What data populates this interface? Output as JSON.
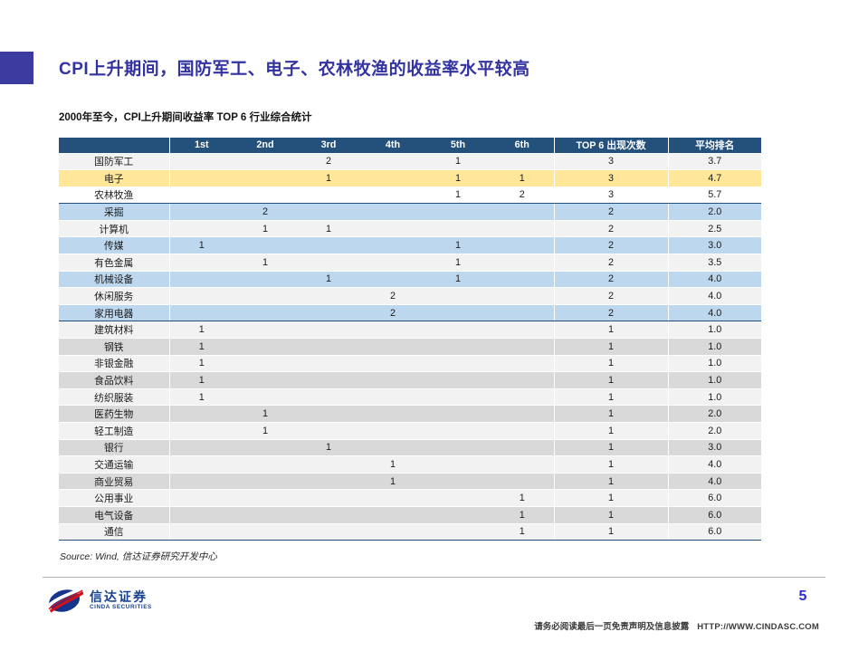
{
  "page": {
    "title": "CPI上升期间，国防军工、电子、农林牧渔的收益率水平较高",
    "subtitle": "2000年至今，CPI上升期间收益率 TOP 6 行业综合统计",
    "source": "Source: Wind, 信达证券研究开发中心",
    "page_number": "5",
    "disclaimer": "请务必阅读最后一页免责声明及信息披露",
    "website": "HTTP://WWW.CINDASC.COM",
    "logo": {
      "name_cn": "信达证券",
      "name_en": "CINDA SECURITIES"
    }
  },
  "colors": {
    "accent": "#3C3CA0",
    "title": "#3333A0",
    "navy": "#24507C",
    "yellow": "#FFE699",
    "blue": "#BDD7EE",
    "gray": "#D9D9D9",
    "light": "#F2F2F2",
    "line": "#B3B3B3",
    "pageblue": "#2B2BD0",
    "logoblue": "#17418F",
    "logored": "#D0121B"
  },
  "chart_data": {
    "type": "table",
    "columns": [
      "",
      "1st",
      "2nd",
      "3rd",
      "4th",
      "5th",
      "6th",
      "TOP 6 出现次数",
      "平均排名"
    ],
    "rows": [
      {
        "label": "国防军工",
        "values": [
          "",
          "",
          "2",
          "",
          "1",
          ""
        ],
        "top6": "3",
        "avg": "3.7",
        "bg": "light",
        "section_end": false
      },
      {
        "label": "电子",
        "values": [
          "",
          "",
          "1",
          "",
          "1",
          "1"
        ],
        "top6": "3",
        "avg": "4.7",
        "bg": "yellow",
        "section_end": false
      },
      {
        "label": "农林牧渔",
        "values": [
          "",
          "",
          "",
          "",
          "1",
          "2"
        ],
        "top6": "3",
        "avg": "5.7",
        "bg": "white",
        "section_end": true
      },
      {
        "label": "采掘",
        "values": [
          "",
          "2",
          "",
          "",
          "",
          ""
        ],
        "top6": "2",
        "avg": "2.0",
        "bg": "blue",
        "section_end": false
      },
      {
        "label": "计算机",
        "values": [
          "",
          "1",
          "1",
          "",
          "",
          ""
        ],
        "top6": "2",
        "avg": "2.5",
        "bg": "light",
        "section_end": false
      },
      {
        "label": "传媒",
        "values": [
          "1",
          "",
          "",
          "",
          "1",
          ""
        ],
        "top6": "2",
        "avg": "3.0",
        "bg": "blue",
        "section_end": false
      },
      {
        "label": "有色金属",
        "values": [
          "",
          "1",
          "",
          "",
          "1",
          ""
        ],
        "top6": "2",
        "avg": "3.5",
        "bg": "light",
        "section_end": false
      },
      {
        "label": "机械设备",
        "values": [
          "",
          "",
          "1",
          "",
          "1",
          ""
        ],
        "top6": "2",
        "avg": "4.0",
        "bg": "blue",
        "section_end": false
      },
      {
        "label": "休闲服务",
        "values": [
          "",
          "",
          "",
          "2",
          "",
          ""
        ],
        "top6": "2",
        "avg": "4.0",
        "bg": "light",
        "section_end": false
      },
      {
        "label": "家用电器",
        "values": [
          "",
          "",
          "",
          "2",
          "",
          ""
        ],
        "top6": "2",
        "avg": "4.0",
        "bg": "blue",
        "section_end": true
      },
      {
        "label": "建筑材料",
        "values": [
          "1",
          "",
          "",
          "",
          "",
          ""
        ],
        "top6": "1",
        "avg": "1.0",
        "bg": "light",
        "section_end": false
      },
      {
        "label": "钢铁",
        "values": [
          "1",
          "",
          "",
          "",
          "",
          ""
        ],
        "top6": "1",
        "avg": "1.0",
        "bg": "gray",
        "section_end": false
      },
      {
        "label": "非银金融",
        "values": [
          "1",
          "",
          "",
          "",
          "",
          ""
        ],
        "top6": "1",
        "avg": "1.0",
        "bg": "light",
        "section_end": false
      },
      {
        "label": "食品饮料",
        "values": [
          "1",
          "",
          "",
          "",
          "",
          ""
        ],
        "top6": "1",
        "avg": "1.0",
        "bg": "gray",
        "section_end": false
      },
      {
        "label": "纺织服装",
        "values": [
          "1",
          "",
          "",
          "",
          "",
          ""
        ],
        "top6": "1",
        "avg": "1.0",
        "bg": "light",
        "section_end": false
      },
      {
        "label": "医药生物",
        "values": [
          "",
          "1",
          "",
          "",
          "",
          ""
        ],
        "top6": "1",
        "avg": "2.0",
        "bg": "gray",
        "section_end": false
      },
      {
        "label": "轻工制造",
        "values": [
          "",
          "1",
          "",
          "",
          "",
          ""
        ],
        "top6": "1",
        "avg": "2.0",
        "bg": "light",
        "section_end": false
      },
      {
        "label": "银行",
        "values": [
          "",
          "",
          "1",
          "",
          "",
          ""
        ],
        "top6": "1",
        "avg": "3.0",
        "bg": "gray",
        "section_end": false
      },
      {
        "label": "交通运输",
        "values": [
          "",
          "",
          "",
          "1",
          "",
          ""
        ],
        "top6": "1",
        "avg": "4.0",
        "bg": "light",
        "section_end": false
      },
      {
        "label": "商业贸易",
        "values": [
          "",
          "",
          "",
          "1",
          "",
          ""
        ],
        "top6": "1",
        "avg": "4.0",
        "bg": "gray",
        "section_end": false
      },
      {
        "label": "公用事业",
        "values": [
          "",
          "",
          "",
          "",
          "",
          "1"
        ],
        "top6": "1",
        "avg": "6.0",
        "bg": "light",
        "section_end": false
      },
      {
        "label": "电气设备",
        "values": [
          "",
          "",
          "",
          "",
          "",
          "1"
        ],
        "top6": "1",
        "avg": "6.0",
        "bg": "gray",
        "section_end": false
      },
      {
        "label": "通信",
        "values": [
          "",
          "",
          "",
          "",
          "",
          "1"
        ],
        "top6": "1",
        "avg": "6.0",
        "bg": "light",
        "section_end": true
      }
    ]
  }
}
